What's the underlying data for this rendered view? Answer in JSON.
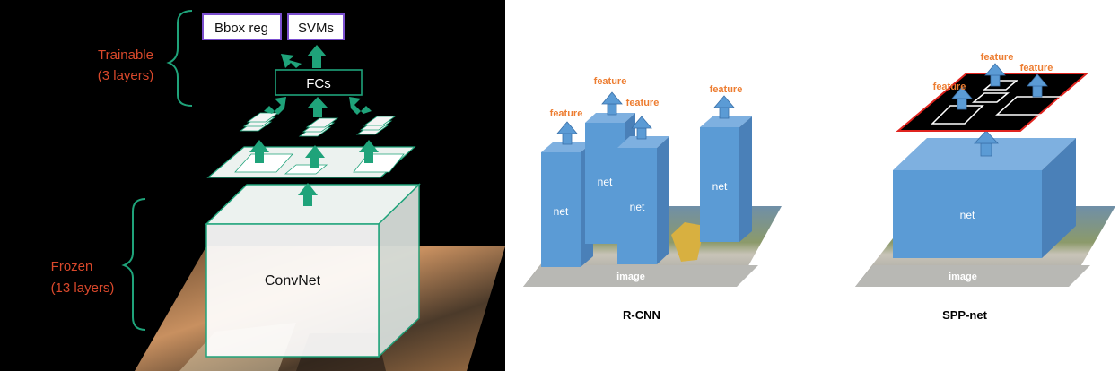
{
  "left": {
    "bbox_reg_label": "Bbox reg",
    "svms_label": "SVMs",
    "fcs_label": "FCs",
    "convnet_label": "ConvNet",
    "trainable_line1": "Trainable",
    "trainable_line2": "(3 layers)",
    "frozen_line1": "Frozen",
    "frozen_line2": "(13 layers)"
  },
  "rcnn": {
    "nets": [
      "net",
      "net",
      "net",
      "net"
    ],
    "features": [
      "feature",
      "feature",
      "feature",
      "feature"
    ],
    "image_label": "image",
    "caption": "R-CNN"
  },
  "sppnet": {
    "net_label": "net",
    "features": [
      "feature",
      "feature",
      "feature"
    ],
    "image_label": "image",
    "caption": "SPP-net"
  },
  "colors": {
    "accent_green": "#1fa37a",
    "orange_text": "#d9482b",
    "purple_box": "#7b4fcf",
    "net_blue": "#5b9bd5",
    "feature_orange": "#ed7d31",
    "spp_red": "#e0241f"
  }
}
